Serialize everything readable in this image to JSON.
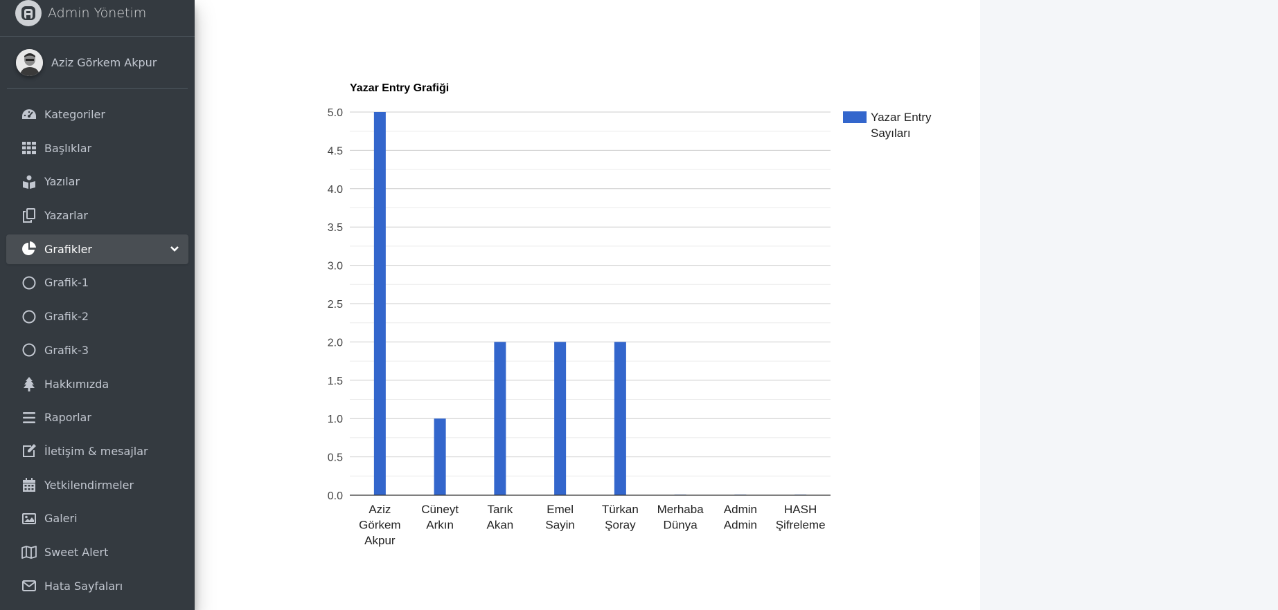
{
  "brand": {
    "title": "Admin Yönetim"
  },
  "user": {
    "name": "Aziz Görkem Akpur"
  },
  "sidebar": {
    "items": [
      {
        "label": "Kategoriler",
        "icon": "tachometer-icon"
      },
      {
        "label": "Başlıklar",
        "icon": "grid-icon"
      },
      {
        "label": "Yazılar",
        "icon": "book-reader-icon"
      },
      {
        "label": "Yazarlar",
        "icon": "copy-icon"
      },
      {
        "label": "Grafikler",
        "icon": "pie-chart-icon",
        "active": true,
        "expanded": true
      },
      {
        "label": "Grafik-1",
        "icon": "circle-icon"
      },
      {
        "label": "Grafik-2",
        "icon": "circle-icon"
      },
      {
        "label": "Grafik-3",
        "icon": "circle-icon"
      },
      {
        "label": "Hakkımızda",
        "icon": "tree-icon"
      },
      {
        "label": "Raporlar",
        "icon": "bars-icon"
      },
      {
        "label": "İletişim & mesajlar",
        "icon": "edit-icon"
      },
      {
        "label": "Yetkilendirmeler",
        "icon": "calendar-icon"
      },
      {
        "label": "Galeri",
        "icon": "image-icon"
      },
      {
        "label": "Sweet Alert",
        "icon": "map-icon"
      },
      {
        "label": "Hata Sayfaları",
        "icon": "envelope-icon"
      }
    ]
  },
  "colors": {
    "sidebar_bg": "#343a40",
    "bar_color": "#3366cc",
    "active_item_bg": "#494e53"
  },
  "chart_data": {
    "type": "bar",
    "title": "Yazar Entry Grafiği",
    "categories": [
      [
        "Aziz",
        "Görkem",
        "Akpur"
      ],
      [
        "Cüneyt",
        "Arkın"
      ],
      [
        "Tarık",
        "Akan"
      ],
      [
        "Emel",
        "Sayin"
      ],
      [
        "Türkan",
        "Şoray"
      ],
      [
        "Merhaba",
        "Dünya"
      ],
      [
        "Admin",
        "Admin"
      ],
      [
        "HASH",
        "Şifreleme"
      ]
    ],
    "series": [
      {
        "name": "Yazar Entry Sayıları",
        "values": [
          5,
          1,
          2,
          2,
          2,
          0,
          0,
          0
        ]
      }
    ],
    "legend_lines": [
      "Yazar Entry",
      "Sayıları"
    ],
    "yticks": [
      "0.0",
      "0.5",
      "1.0",
      "1.5",
      "2.0",
      "2.5",
      "3.0",
      "3.5",
      "4.0",
      "4.5",
      "5.0"
    ],
    "ylim": [
      0,
      5
    ],
    "grid": true,
    "legend_position": "right"
  }
}
